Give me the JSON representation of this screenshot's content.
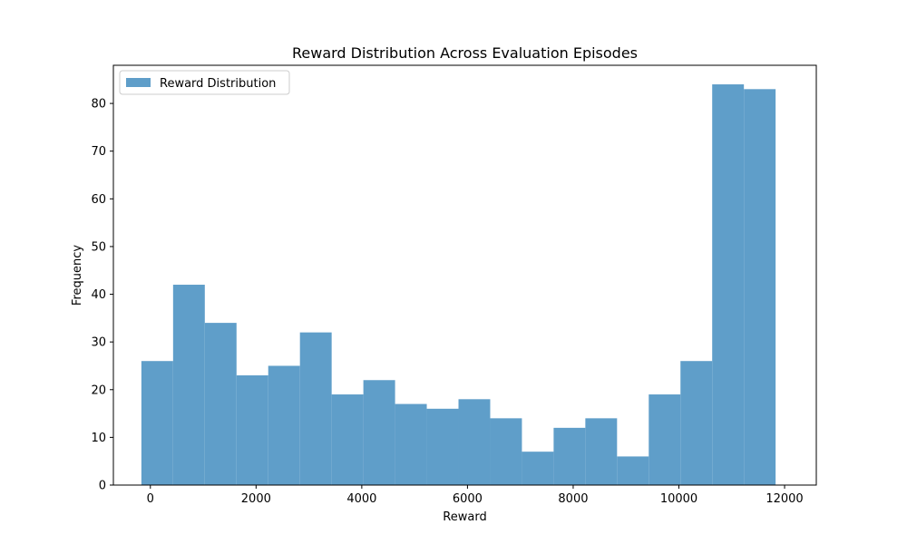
{
  "chart_data": {
    "type": "bar",
    "title": "Reward Distribution Across Evaluation Episodes",
    "xlabel": "Reward",
    "ylabel": "Frequency",
    "xlim": [
      -700,
      12600
    ],
    "ylim": [
      0,
      88
    ],
    "xticks": [
      0,
      2000,
      4000,
      6000,
      8000,
      10000,
      12000
    ],
    "xtick_labels": [
      "0",
      "2000",
      "4000",
      "6000",
      "8000",
      "10000",
      "12000"
    ],
    "yticks": [
      0,
      10,
      20,
      30,
      40,
      50,
      60,
      70,
      80
    ],
    "ytick_labels": [
      "0",
      "10",
      "20",
      "30",
      "40",
      "50",
      "60",
      "70",
      "80"
    ],
    "bin_edges": [
      -170,
      430,
      1030,
      1630,
      2230,
      2830,
      3430,
      4030,
      4630,
      5230,
      5830,
      6430,
      7030,
      7630,
      8230,
      8830,
      9430,
      10030,
      10630,
      11230,
      11830
    ],
    "series": [
      {
        "name": "Reward Distribution",
        "values": [
          26,
          42,
          34,
          23,
          25,
          32,
          19,
          22,
          17,
          16,
          18,
          14,
          7,
          12,
          14,
          6,
          19,
          26,
          84,
          83
        ]
      }
    ],
    "color": "#5f9ec9",
    "grid": false,
    "legend_position": "upper-left"
  }
}
